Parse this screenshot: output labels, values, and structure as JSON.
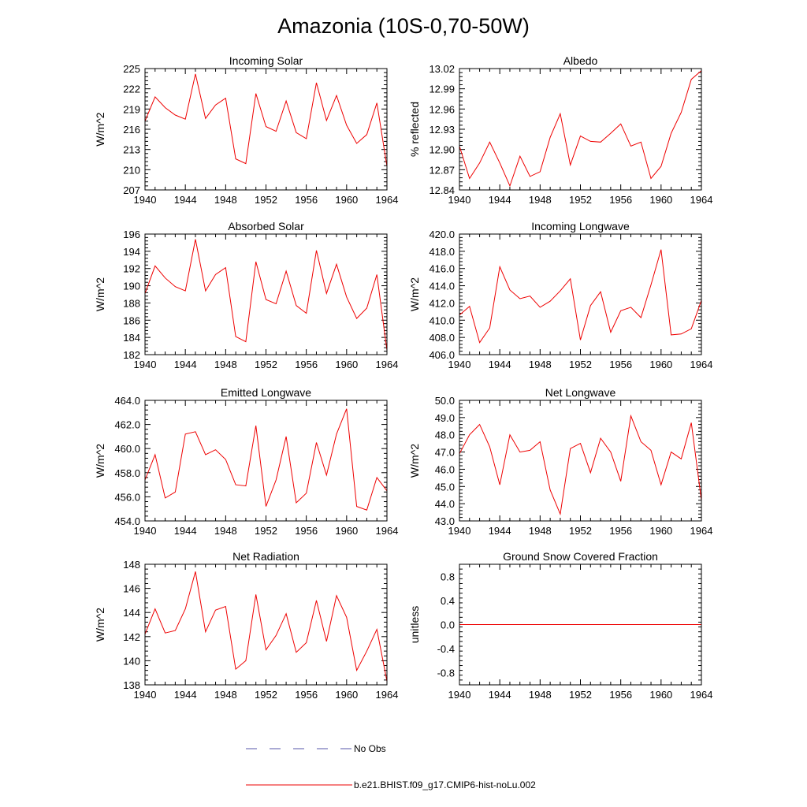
{
  "figure": {
    "title": "Amazonia (10S-0,70-50W)"
  },
  "legend": {
    "entries": [
      {
        "label": "No Obs",
        "color": "#5555aa",
        "style": "dashed"
      },
      {
        "label": "b.e21.BHIST.f09_g17.CMIP6-hist-noLu.002",
        "color": "#ee0000",
        "style": "solid"
      }
    ]
  },
  "chart_data": [
    {
      "type": "line",
      "title": "Incoming Solar",
      "xlabel": "",
      "ylabel": "W/m^2",
      "xlim": [
        1940,
        1964
      ],
      "ylim": [
        207,
        225
      ],
      "xticks": [
        1940,
        1944,
        1948,
        1952,
        1956,
        1960,
        1964
      ],
      "yticks": [
        "207",
        "210",
        "213",
        "216",
        "219",
        "222",
        "225"
      ],
      "grid": false,
      "series": [
        {
          "color": "#ee0000",
          "x": [
            1940,
            1941,
            1942,
            1943,
            1944,
            1945,
            1946,
            1947,
            1948,
            1949,
            1950,
            1951,
            1952,
            1953,
            1954,
            1955,
            1956,
            1957,
            1958,
            1959,
            1960,
            1961,
            1962,
            1963,
            1964
          ],
          "values": [
            217.2,
            220.8,
            219.2,
            218.1,
            217.5,
            224.2,
            217.6,
            219.6,
            220.6,
            211.6,
            210.9,
            221.3,
            216.4,
            215.7,
            220.2,
            215.5,
            214.6,
            222.9,
            217.3,
            221.0,
            216.6,
            213.9,
            215.2,
            219.9,
            210.5
          ]
        }
      ]
    },
    {
      "type": "line",
      "title": "Albedo",
      "xlabel": "",
      "ylabel": "% reflected",
      "xlim": [
        1940,
        1964
      ],
      "ylim": [
        12.84,
        13.02
      ],
      "xticks": [
        1940,
        1944,
        1948,
        1952,
        1956,
        1960,
        1964
      ],
      "yticks": [
        "12.84",
        "12.87",
        "12.90",
        "12.93",
        "12.96",
        "12.99",
        "13.02"
      ],
      "grid": false,
      "series": [
        {
          "color": "#ee0000",
          "x": [
            1940,
            1941,
            1942,
            1943,
            1944,
            1945,
            1946,
            1947,
            1948,
            1949,
            1950,
            1951,
            1952,
            1953,
            1954,
            1955,
            1956,
            1957,
            1958,
            1959,
            1960,
            1961,
            1962,
            1963,
            1964
          ],
          "values": [
            12.905,
            12.857,
            12.88,
            12.911,
            12.88,
            12.846,
            12.89,
            12.86,
            12.867,
            12.918,
            12.953,
            12.877,
            12.92,
            12.912,
            12.911,
            12.924,
            12.938,
            12.905,
            12.911,
            12.857,
            12.875,
            12.924,
            12.955,
            13.004,
            13.017
          ]
        }
      ]
    },
    {
      "type": "line",
      "title": "Absorbed Solar",
      "xlabel": "",
      "ylabel": "W/m^2",
      "xlim": [
        1940,
        1964
      ],
      "ylim": [
        182,
        196
      ],
      "xticks": [
        1940,
        1944,
        1948,
        1952,
        1956,
        1960,
        1964
      ],
      "yticks": [
        "182",
        "184",
        "186",
        "188",
        "190",
        "192",
        "194",
        "196"
      ],
      "grid": false,
      "series": [
        {
          "color": "#ee0000",
          "x": [
            1940,
            1941,
            1942,
            1943,
            1944,
            1945,
            1946,
            1947,
            1948,
            1949,
            1950,
            1951,
            1952,
            1953,
            1954,
            1955,
            1956,
            1957,
            1958,
            1959,
            1960,
            1961,
            1962,
            1963,
            1964
          ],
          "values": [
            189.1,
            192.3,
            190.9,
            189.9,
            189.4,
            195.4,
            189.4,
            191.3,
            192.1,
            184.1,
            183.5,
            192.8,
            188.4,
            187.9,
            191.7,
            187.7,
            186.8,
            194.1,
            189.1,
            192.5,
            188.7,
            186.2,
            187.4,
            191.3,
            182.5
          ]
        }
      ]
    },
    {
      "type": "line",
      "title": "Incoming Longwave",
      "xlabel": "",
      "ylabel": "W/m^2",
      "xlim": [
        1940,
        1964
      ],
      "ylim": [
        406,
        420
      ],
      "xticks": [
        1940,
        1944,
        1948,
        1952,
        1956,
        1960,
        1964
      ],
      "yticks": [
        "406.0",
        "408.0",
        "410.0",
        "412.0",
        "414.0",
        "416.0",
        "418.0",
        "420.0"
      ],
      "grid": false,
      "series": [
        {
          "color": "#ee0000",
          "x": [
            1940,
            1941,
            1942,
            1943,
            1944,
            1945,
            1946,
            1947,
            1948,
            1949,
            1950,
            1951,
            1952,
            1953,
            1954,
            1955,
            1956,
            1957,
            1958,
            1959,
            1960,
            1961,
            1962,
            1963,
            1964
          ],
          "values": [
            410.6,
            411.6,
            407.4,
            409.1,
            416.2,
            413.5,
            412.5,
            412.8,
            411.5,
            412.2,
            413.4,
            414.8,
            407.7,
            411.7,
            413.3,
            408.6,
            411.1,
            411.5,
            410.3,
            414.1,
            418.2,
            408.3,
            408.4,
            409.0,
            412.3
          ]
        }
      ]
    },
    {
      "type": "line",
      "title": "Emitted Longwave",
      "xlabel": "",
      "ylabel": "W/m^2",
      "xlim": [
        1940,
        1964
      ],
      "ylim": [
        454,
        464
      ],
      "xticks": [
        1940,
        1944,
        1948,
        1952,
        1956,
        1960,
        1964
      ],
      "yticks": [
        "454.0",
        "456.0",
        "458.0",
        "460.0",
        "462.0",
        "464.0"
      ],
      "grid": false,
      "series": [
        {
          "color": "#ee0000",
          "x": [
            1940,
            1941,
            1942,
            1943,
            1944,
            1945,
            1946,
            1947,
            1948,
            1949,
            1950,
            1951,
            1952,
            1953,
            1954,
            1955,
            1956,
            1957,
            1958,
            1959,
            1960,
            1961,
            1962,
            1963,
            1964
          ],
          "values": [
            457.4,
            459.5,
            455.9,
            456.4,
            461.2,
            461.4,
            459.5,
            459.9,
            459.1,
            457.0,
            456.9,
            461.9,
            455.2,
            457.4,
            461.0,
            455.5,
            456.3,
            460.5,
            457.8,
            461.2,
            463.3,
            455.2,
            454.9,
            457.6,
            456.5
          ]
        }
      ]
    },
    {
      "type": "line",
      "title": "Net Longwave",
      "xlabel": "",
      "ylabel": "W/m^2",
      "xlim": [
        1940,
        1964
      ],
      "ylim": [
        43,
        50
      ],
      "xticks": [
        1940,
        1944,
        1948,
        1952,
        1956,
        1960,
        1964
      ],
      "yticks": [
        "43.0",
        "44.0",
        "45.0",
        "46.0",
        "47.0",
        "48.0",
        "49.0",
        "50.0"
      ],
      "grid": false,
      "series": [
        {
          "color": "#ee0000",
          "x": [
            1940,
            1941,
            1942,
            1943,
            1944,
            1945,
            1946,
            1947,
            1948,
            1949,
            1950,
            1951,
            1952,
            1953,
            1954,
            1955,
            1956,
            1957,
            1958,
            1959,
            1960,
            1961,
            1962,
            1963,
            1964
          ],
          "values": [
            46.9,
            48.0,
            48.6,
            47.3,
            45.1,
            48.0,
            47.0,
            47.1,
            47.6,
            44.8,
            43.4,
            47.2,
            47.5,
            45.8,
            47.8,
            47.0,
            45.3,
            49.1,
            47.6,
            47.1,
            45.1,
            47.0,
            46.6,
            48.7,
            44.2
          ]
        }
      ]
    },
    {
      "type": "line",
      "title": "Net Radiation",
      "xlabel": "",
      "ylabel": "W/m^2",
      "xlim": [
        1940,
        1964
      ],
      "ylim": [
        138,
        148
      ],
      "xticks": [
        1940,
        1944,
        1948,
        1952,
        1956,
        1960,
        1964
      ],
      "yticks": [
        "138",
        "140",
        "142",
        "144",
        "146",
        "148"
      ],
      "grid": false,
      "series": [
        {
          "color": "#ee0000",
          "x": [
            1940,
            1941,
            1942,
            1943,
            1944,
            1945,
            1946,
            1947,
            1948,
            1949,
            1950,
            1951,
            1952,
            1953,
            1954,
            1955,
            1956,
            1957,
            1958,
            1959,
            1960,
            1961,
            1962,
            1963,
            1964
          ],
          "values": [
            142.2,
            144.3,
            142.3,
            142.5,
            144.3,
            147.4,
            142.4,
            144.2,
            144.5,
            139.3,
            140.0,
            145.5,
            140.9,
            142.1,
            143.9,
            140.7,
            141.5,
            145.0,
            141.6,
            145.4,
            143.6,
            139.2,
            140.8,
            142.6,
            138.3
          ]
        }
      ]
    },
    {
      "type": "line",
      "title": "Ground Snow Covered Fraction",
      "xlabel": "",
      "ylabel": "unitless",
      "xlim": [
        1940,
        1964
      ],
      "ylim": [
        -1,
        1
      ],
      "xticks": [
        1940,
        1944,
        1948,
        1952,
        1956,
        1960,
        1964
      ],
      "yticks": [
        "-0.8",
        "-0.4",
        "0.0",
        "0.4",
        "0.8"
      ],
      "grid": false,
      "series": [
        {
          "color": "#ee0000",
          "x": [
            1940,
            1964
          ],
          "values": [
            0,
            0
          ]
        }
      ]
    }
  ]
}
